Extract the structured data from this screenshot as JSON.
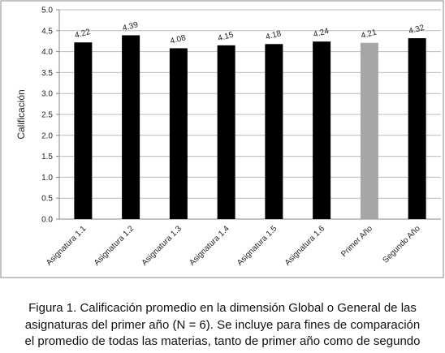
{
  "chart_data": {
    "type": "bar",
    "ylabel": "Calificación",
    "categories": [
      "Asignatura 1.1",
      "Asignatura 1.2",
      "Asignatura 1.3",
      "Asignatura 1.4",
      "Asignatura 1.5",
      "Asignatura 1.6",
      "Primer Año",
      "Segundo Año"
    ],
    "values": [
      4.22,
      4.39,
      4.08,
      4.15,
      4.18,
      4.24,
      4.21,
      4.32
    ],
    "colors": [
      "#000000",
      "#000000",
      "#000000",
      "#000000",
      "#000000",
      "#000000",
      "#a6a6a6",
      "#000000"
    ],
    "ylim": [
      0,
      5
    ],
    "yticks": [
      {
        "value": 0,
        "label": "0.0"
      },
      {
        "value": 0.5,
        "label": "0.5"
      },
      {
        "value": 1,
        "label": "1.0"
      },
      {
        "value": 1.5,
        "label": "1.5"
      },
      {
        "value": 2,
        "label": "2.0"
      },
      {
        "value": 2.5,
        "label": "2.5"
      },
      {
        "value": 3,
        "label": "3.0"
      },
      {
        "value": 3.5,
        "label": "3.5"
      },
      {
        "value": 4,
        "label": "4.0"
      },
      {
        "value": 4.5,
        "label": "4.5"
      },
      {
        "value": 5,
        "label": "5.0"
      }
    ],
    "grid": true,
    "caption": [
      "Figura 1. Calificación promedio en la dimensión Global o General  de las",
      "asignaturas del primer año (N = 6). Se incluye para fines de comparación",
      "el promedio de todas las materias, tanto de primer año como de segundo"
    ]
  }
}
